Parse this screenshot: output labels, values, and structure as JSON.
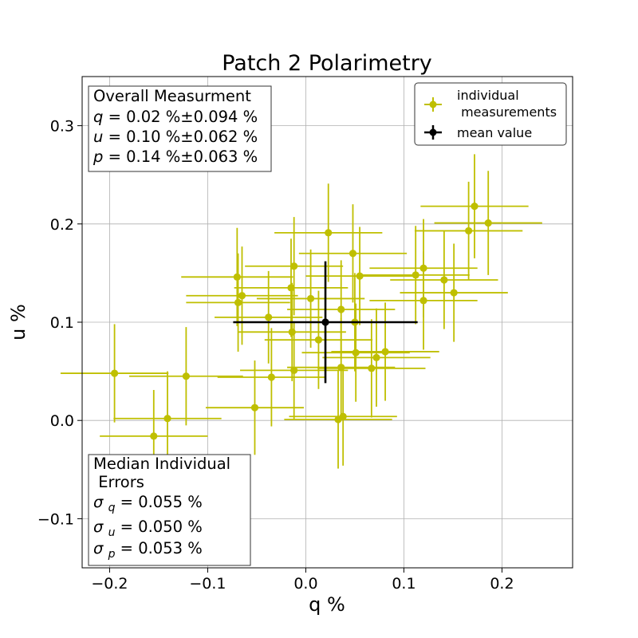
{
  "chart_data": {
    "type": "scatter",
    "title": "Patch 2 Polarimetry",
    "xlabel": "q %",
    "ylabel": "u %",
    "xlim": [
      -0.228,
      0.272
    ],
    "ylim": [
      -0.15,
      0.35
    ],
    "xticks": [
      -0.2,
      -0.1,
      0.0,
      0.1,
      0.2
    ],
    "xtick_labels": [
      "−0.2",
      "−0.1",
      "0.0",
      "0.1",
      "0.2"
    ],
    "yticks": [
      -0.1,
      0.0,
      0.1,
      0.2,
      0.3
    ],
    "ytick_labels": [
      "−0.1",
      "0.0",
      "0.1",
      "0.2",
      "0.3"
    ],
    "grid": true,
    "series": [
      {
        "name": "individual\n measurements",
        "color": "#bfbf00",
        "points": [
          {
            "q": -0.195,
            "u": 0.048,
            "qerr": 0.055,
            "uerr": 0.05
          },
          {
            "q": -0.155,
            "u": -0.016,
            "qerr": 0.055,
            "uerr": 0.047
          },
          {
            "q": -0.141,
            "u": 0.002,
            "qerr": 0.055,
            "uerr": 0.048
          },
          {
            "q": -0.122,
            "u": 0.045,
            "qerr": 0.058,
            "uerr": 0.05
          },
          {
            "q": -0.07,
            "u": 0.146,
            "qerr": 0.057,
            "uerr": 0.05
          },
          {
            "q": -0.069,
            "u": 0.12,
            "qerr": 0.053,
            "uerr": 0.05
          },
          {
            "q": -0.065,
            "u": 0.127,
            "qerr": 0.057,
            "uerr": 0.05
          },
          {
            "q": -0.052,
            "u": 0.013,
            "qerr": 0.05,
            "uerr": 0.048
          },
          {
            "q": -0.038,
            "u": 0.105,
            "qerr": 0.055,
            "uerr": 0.047
          },
          {
            "q": -0.035,
            "u": 0.044,
            "qerr": 0.055,
            "uerr": 0.05
          },
          {
            "q": -0.015,
            "u": 0.135,
            "qerr": 0.058,
            "uerr": 0.05
          },
          {
            "q": -0.014,
            "u": 0.09,
            "qerr": 0.055,
            "uerr": 0.05
          },
          {
            "q": -0.012,
            "u": 0.051,
            "qerr": 0.055,
            "uerr": 0.05
          },
          {
            "q": -0.012,
            "u": 0.157,
            "qerr": 0.05,
            "uerr": 0.05
          },
          {
            "q": 0.005,
            "u": 0.124,
            "qerr": 0.055,
            "uerr": 0.05
          },
          {
            "q": 0.013,
            "u": 0.082,
            "qerr": 0.055,
            "uerr": 0.05
          },
          {
            "q": 0.023,
            "u": 0.191,
            "qerr": 0.055,
            "uerr": 0.05
          },
          {
            "q": 0.033,
            "u": 0.001,
            "qerr": 0.055,
            "uerr": 0.05
          },
          {
            "q": 0.036,
            "u": 0.113,
            "qerr": 0.055,
            "uerr": 0.05
          },
          {
            "q": 0.036,
            "u": 0.054,
            "qerr": 0.055,
            "uerr": 0.05
          },
          {
            "q": 0.038,
            "u": 0.004,
            "qerr": 0.055,
            "uerr": 0.05
          },
          {
            "q": 0.048,
            "u": 0.17,
            "qerr": 0.055,
            "uerr": 0.05
          },
          {
            "q": 0.05,
            "u": 0.1,
            "qerr": 0.055,
            "uerr": 0.05
          },
          {
            "q": 0.051,
            "u": 0.069,
            "qerr": 0.055,
            "uerr": 0.05
          },
          {
            "q": 0.055,
            "u": 0.147,
            "qerr": 0.055,
            "uerr": 0.05
          },
          {
            "q": 0.067,
            "u": 0.053,
            "qerr": 0.055,
            "uerr": 0.05
          },
          {
            "q": 0.072,
            "u": 0.064,
            "qerr": 0.055,
            "uerr": 0.05
          },
          {
            "q": 0.081,
            "u": 0.07,
            "qerr": 0.055,
            "uerr": 0.05
          },
          {
            "q": 0.112,
            "u": 0.148,
            "qerr": 0.055,
            "uerr": 0.05
          },
          {
            "q": 0.12,
            "u": 0.155,
            "qerr": 0.055,
            "uerr": 0.05
          },
          {
            "q": 0.12,
            "u": 0.122,
            "qerr": 0.055,
            "uerr": 0.05
          },
          {
            "q": 0.141,
            "u": 0.143,
            "qerr": 0.055,
            "uerr": 0.05
          },
          {
            "q": 0.151,
            "u": 0.13,
            "qerr": 0.055,
            "uerr": 0.05
          },
          {
            "q": 0.166,
            "u": 0.193,
            "qerr": 0.055,
            "uerr": 0.05
          },
          {
            "q": 0.172,
            "u": 0.218,
            "qerr": 0.055,
            "uerr": 0.053
          },
          {
            "q": 0.186,
            "u": 0.201,
            "qerr": 0.055,
            "uerr": 0.053
          }
        ]
      },
      {
        "name": "mean value",
        "color": "#000000",
        "points": [
          {
            "q": 0.02,
            "u": 0.1,
            "qerr": 0.094,
            "uerr": 0.062
          }
        ]
      }
    ],
    "legend_position": "upper-right",
    "annotations": {
      "overall": {
        "title": "Overall Measurment",
        "lines": [
          {
            "sym": "q",
            "value": "= 0.02 %±0.094 %"
          },
          {
            "sym": "u",
            "value": "= 0.10 %±0.062 %"
          },
          {
            "sym": "p",
            "value": "= 0.14 %±0.063 %"
          }
        ]
      },
      "median": {
        "title_line1": "Median Individual",
        "title_line2": " Errors",
        "lines": [
          {
            "sym": "σ",
            "sub": "q",
            "value": "= 0.055 %"
          },
          {
            "sym": "σ",
            "sub": "u",
            "value": "= 0.050 %"
          },
          {
            "sym": "σ",
            "sub": "p",
            "value": "= 0.053 %"
          }
        ]
      }
    }
  }
}
